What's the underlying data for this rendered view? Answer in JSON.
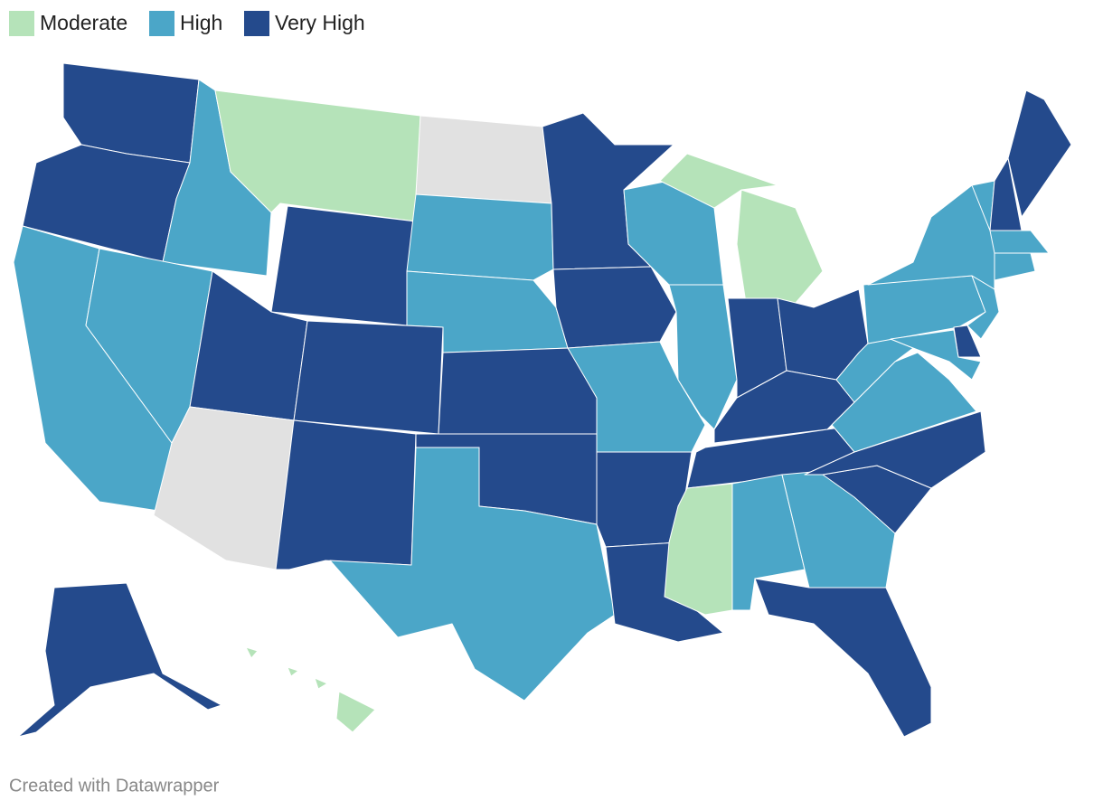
{
  "legend": [
    {
      "label": "Moderate",
      "color": "#b5e3b9"
    },
    {
      "label": "High",
      "color": "#4ba6c8"
    },
    {
      "label": "Very High",
      "color": "#244a8c"
    }
  ],
  "no_data_color": "#e1e1e1",
  "regions": [
    2,
    2,
    1,
    0,
    2,
    null,
    1,
    1,
    1,
    1,
    2,
    null,
    2,
    2,
    2,
    2,
    1,
    2,
    2,
    1,
    2,
    2,
    1,
    1,
    0,
    2,
    2,
    2,
    2,
    0,
    1,
    1,
    2,
    2,
    2,
    1,
    1,
    1,
    1,
    1,
    2,
    2,
    1,
    1,
    1,
    2,
    1,
    2,
    0
  ],
  "footer": "Created with Datawrapper"
}
